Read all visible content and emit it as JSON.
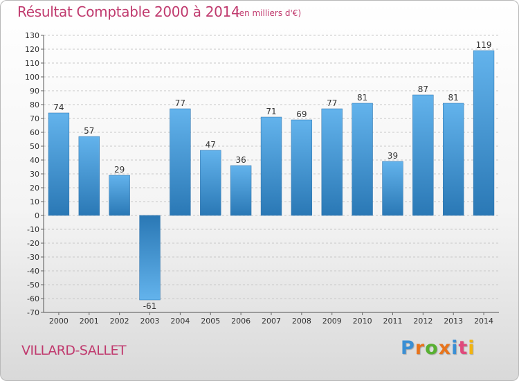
{
  "header": {
    "title": "Résultat Comptable 2000 à 2014",
    "subtitle": "(en milliers d'€)"
  },
  "footer": {
    "commune": "VILLARD-SALLET",
    "logo_letters": [
      "P",
      "r",
      "o",
      "x",
      "i",
      "t",
      "i"
    ],
    "logo_colors": [
      "#3a8fd4",
      "#e8741c",
      "#58b032",
      "#e8741c",
      "#3a8fd4",
      "#e04a7c",
      "#f2b410"
    ]
  },
  "chart_data": {
    "type": "bar",
    "title": "Résultat Comptable 2000 à 2014",
    "subtitle": "(en milliers d'€)",
    "xlabel": "",
    "ylabel": "",
    "categories": [
      "2000",
      "2001",
      "2002",
      "2003",
      "2004",
      "2005",
      "2006",
      "2007",
      "2008",
      "2009",
      "2010",
      "2011",
      "2012",
      "2013",
      "2014"
    ],
    "values": [
      74,
      57,
      29,
      -61,
      77,
      47,
      36,
      71,
      69,
      77,
      81,
      39,
      87,
      81,
      119
    ],
    "ylim": [
      -70,
      130
    ],
    "ytick_step": 10,
    "grid": true,
    "colors": {
      "bar_light": "#63b3ec",
      "bar_dark": "#2a78b5",
      "grid": "#c8c8c8",
      "axis_text": "#333333",
      "title": "#c03a6e"
    }
  }
}
